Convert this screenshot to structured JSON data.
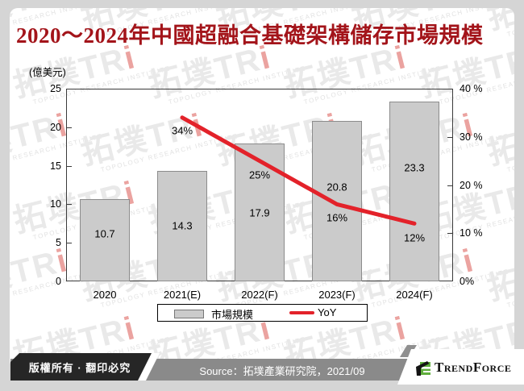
{
  "page": {
    "background": "#D5D5D5"
  },
  "header": {
    "title": "2020～2024年中國超融合基礎架構儲存市場規模",
    "title_color": "#A3141A"
  },
  "chart_data": {
    "type": "bar+line",
    "title": "2020～2024年中國超融合基礎架構儲存市場規模",
    "categories": [
      "2020",
      "2021(E)",
      "2022(F)",
      "2023(F)",
      "2024(F)"
    ],
    "series": [
      {
        "name": "市場規模",
        "chart": "bar",
        "unit": "億美元",
        "values": [
          10.7,
          14.3,
          17.9,
          20.8,
          23.3
        ],
        "labels": [
          "10.7",
          "14.3",
          "17.9",
          "20.8",
          "23.3"
        ],
        "fill": "#CBCBCB",
        "border": "#8C8C8C"
      },
      {
        "name": "YoY",
        "chart": "line",
        "unit": "%",
        "values": [
          null,
          34,
          25,
          16,
          12
        ],
        "labels": [
          "34%",
          "25%",
          "16%",
          "12%"
        ],
        "color": "#E3222A"
      }
    ],
    "left_axis": {
      "title": "(億美元)",
      "min": 0,
      "max": 25,
      "ticks": [
        "25",
        "20",
        "15",
        "10",
        "5",
        "0"
      ]
    },
    "right_axis": {
      "min": 0,
      "max": 40,
      "ticks": [
        "40 %",
        "30 %",
        "20 %",
        "10 %",
        "0%"
      ]
    },
    "legend": {
      "position": "bottom",
      "items": [
        "市場規模",
        "YoY"
      ]
    },
    "grid": false
  },
  "watermark": {
    "brand_prefix": "拓墣TR",
    "brand_i": "i",
    "sub": "TOPOLOGY RESEARCH INSTITUTE"
  },
  "footer": {
    "copyright": "版權所有 · 翻印必究",
    "source": "Source：拓墣產業研究院，2021/09",
    "logo_text": "TrendForce",
    "logo_green": "#5FAE3C"
  }
}
